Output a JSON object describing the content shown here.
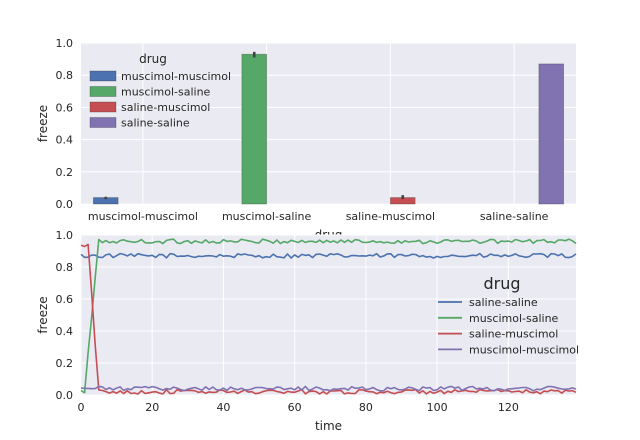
{
  "colors": {
    "background": "#eaeaf2",
    "grid": "#ffffff",
    "text": "#262626",
    "errorbar": "#424242"
  },
  "chart_data": [
    {
      "type": "bar",
      "title": "",
      "xlabel": "drug",
      "ylabel": "freeze",
      "ylim": [
        0,
        1.0
      ],
      "yticks": [
        "0.0",
        "0.2",
        "0.4",
        "0.6",
        "0.8",
        "1.0"
      ],
      "categories": [
        "muscimol-muscimol",
        "muscimol-saline",
        "saline-muscimol",
        "saline-saline"
      ],
      "legend": {
        "title": "drug",
        "placement": "top-left",
        "entries": [
          "muscimol-muscimol",
          "muscimol-saline",
          "saline-muscimol",
          "saline-saline"
        ]
      },
      "series": [
        {
          "name": "muscimol-muscimol",
          "color": "#4c72b0",
          "values": [
            0.04,
            null,
            null,
            null
          ],
          "ci": [
            [
              0.03,
              0.045
            ],
            null,
            null,
            null
          ]
        },
        {
          "name": "muscimol-saline",
          "color": "#55a868",
          "values": [
            null,
            0.93,
            null,
            null
          ],
          "ci": [
            null,
            [
              0.91,
              0.945
            ],
            null,
            null
          ]
        },
        {
          "name": "saline-muscimol",
          "color": "#c44e52",
          "values": [
            null,
            null,
            0.04,
            null
          ],
          "ci": [
            null,
            null,
            [
              0.03,
              0.055
            ],
            null
          ]
        },
        {
          "name": "saline-saline",
          "color": "#8172b2",
          "values": [
            null,
            null,
            null,
            0.87
          ],
          "ci": [
            null,
            null,
            null,
            null
          ]
        }
      ],
      "grid": true
    },
    {
      "type": "line",
      "title": "",
      "xlabel": "time",
      "ylabel": "freeze",
      "xlim": [
        0,
        139
      ],
      "ylim": [
        0,
        1.0
      ],
      "xticks": [
        "0",
        "20",
        "40",
        "60",
        "80",
        "100",
        "120"
      ],
      "yticks": [
        "0.0",
        "0.2",
        "0.4",
        "0.6",
        "0.8",
        "1.0"
      ],
      "legend": {
        "title": "drug",
        "placement": "center-right",
        "entries": [
          "saline-saline",
          "muscimol-saline",
          "saline-muscimol",
          "muscimol-muscimol"
        ]
      },
      "series": [
        {
          "name": "saline-saline",
          "color": "#4c72b0",
          "level": 0.87,
          "start": 0.85
        },
        {
          "name": "muscimol-saline",
          "color": "#55a868",
          "level": 0.96,
          "start": 0.02,
          "rise_end": 8
        },
        {
          "name": "saline-muscimol",
          "color": "#c44e52",
          "level": 0.02,
          "start": 0.93,
          "drop_start": 2,
          "drop_end": 5
        },
        {
          "name": "muscimol-muscimol",
          "color": "#8172b2",
          "level": 0.04,
          "start": 0.04
        }
      ],
      "grid": true
    }
  ]
}
